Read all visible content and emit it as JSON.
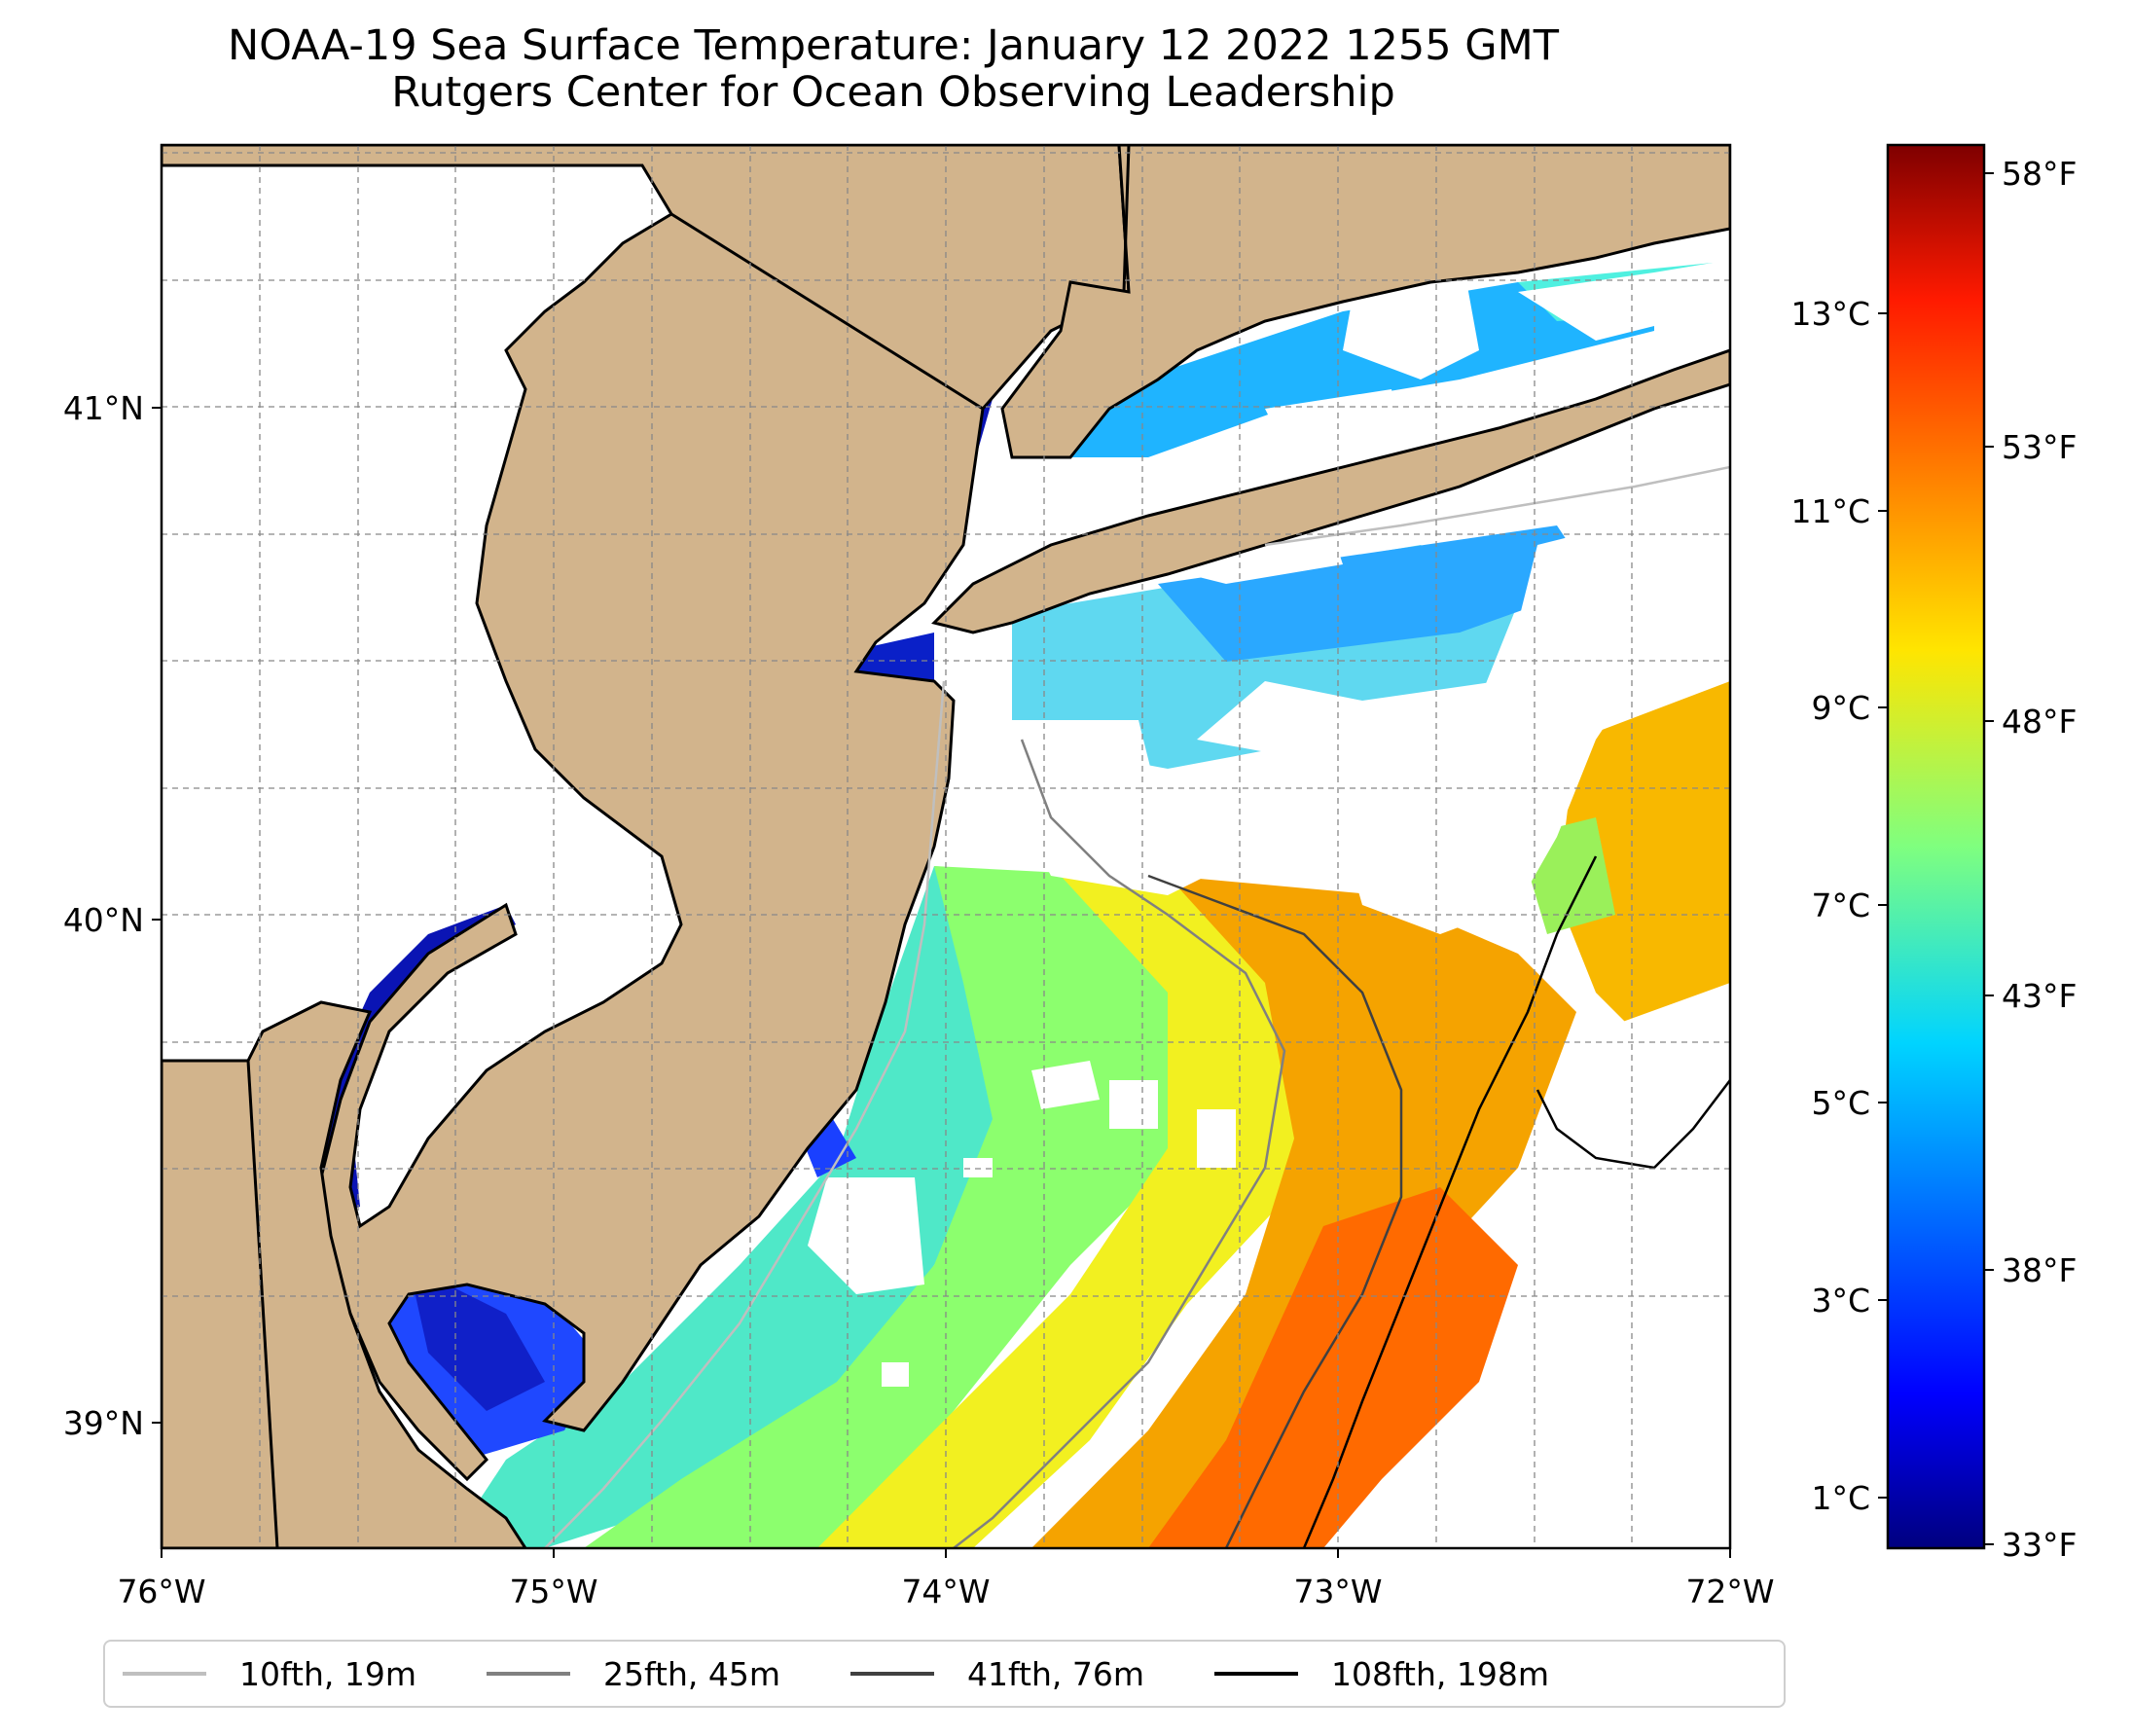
{
  "title": {
    "line1": "NOAA-19 Sea Surface Temperature: January 12 2022 1255 GMT",
    "line2": "Rutgers Center for Ocean Observing Leadership"
  },
  "map": {
    "lon_range": [
      -76,
      -72
    ],
    "lat_range": [
      38.75,
      41.5
    ],
    "x_ticks": [
      "76°W",
      "75°W",
      "74°W",
      "73°W",
      "72°W"
    ],
    "y_ticks": [
      "39°N",
      "40°N",
      "41°N"
    ],
    "land_color": "#d2b48c",
    "gridlines": true
  },
  "colorbar": {
    "colormap": "jet",
    "celsius_ticks": [
      "1°C",
      "3°C",
      "5°C",
      "7°C",
      "9°C",
      "11°C",
      "13°C"
    ],
    "fahrenheit_ticks": [
      "33°F",
      "38°F",
      "43°F",
      "48°F",
      "53°F",
      "58°F"
    ],
    "range_celsius": [
      0.55,
      14.8
    ]
  },
  "legend": {
    "items": [
      {
        "label": "10fth, 19m",
        "color": "#bfbfbf"
      },
      {
        "label": "25fth, 45m",
        "color": "#808080"
      },
      {
        "label": "41fth, 76m",
        "color": "#404040"
      },
      {
        "label": "108fth, 198m",
        "color": "#000000"
      }
    ]
  }
}
